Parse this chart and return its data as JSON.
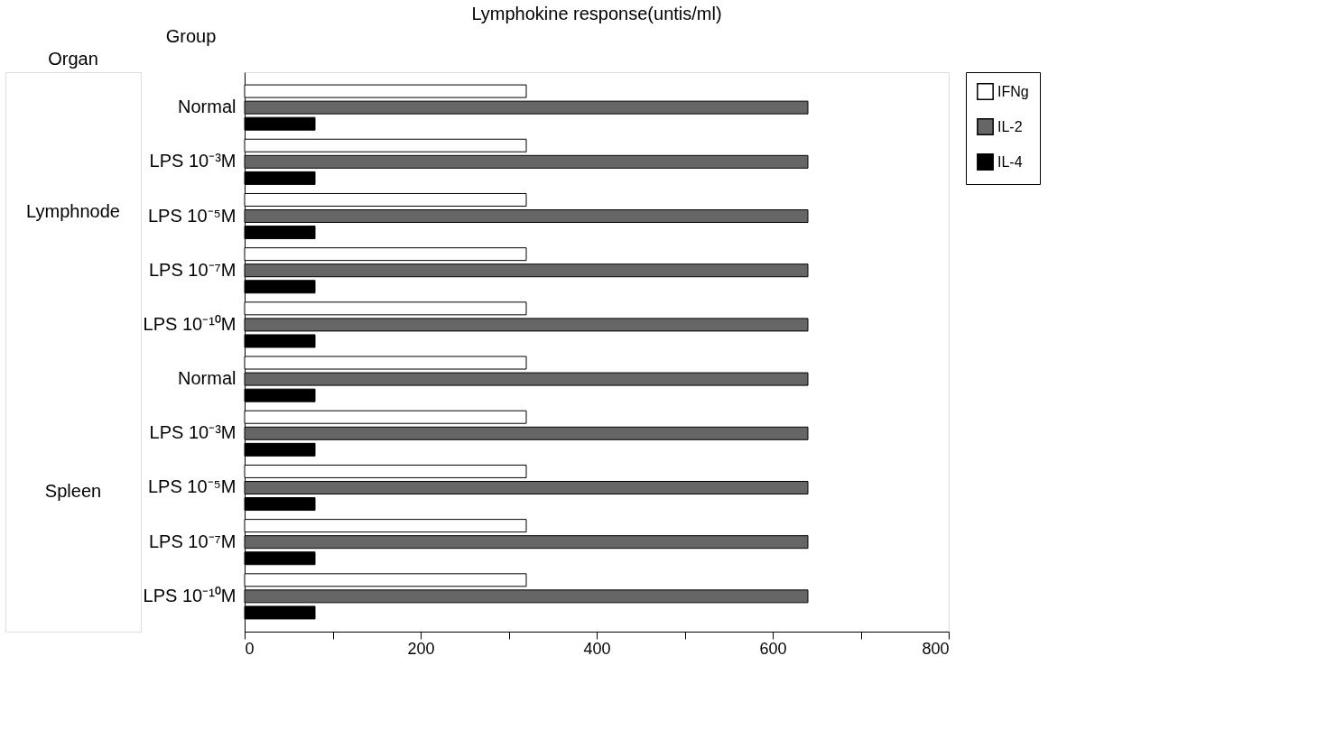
{
  "chart_data": {
    "type": "bar",
    "orientation": "horizontal",
    "title": "Lymphokine response(untis/ml)",
    "ylabel": "Group",
    "annotations": [
      "Organ",
      "Lymphnode",
      "Spleen"
    ],
    "categories": [
      "Normal",
      "LPS 10⁻³M",
      "LPS 10⁻⁵M",
      "LPS 10⁻⁷M",
      "LPS 10⁻¹⁰M",
      "Normal",
      "LPS 10⁻³M",
      "LPS 10⁻⁵M",
      "LPS 10⁻⁷M",
      "LPS 10⁻¹⁰M"
    ],
    "series": [
      {
        "name": "IFNg",
        "color": "#ffffff",
        "values": [
          320,
          320,
          320,
          320,
          320,
          320,
          320,
          320,
          320,
          320
        ]
      },
      {
        "name": "IL-2",
        "color": "#666666",
        "values": [
          640,
          640,
          640,
          640,
          640,
          640,
          640,
          640,
          640,
          640
        ]
      },
      {
        "name": "IL-4",
        "color": "#000000",
        "values": [
          80,
          80,
          80,
          80,
          80,
          80,
          80,
          80,
          80,
          80
        ]
      }
    ],
    "xlim": [
      0,
      800
    ],
    "xticks": [
      0,
      {
        "value": 100,
        "label": null
      },
      200,
      {
        "value": 300,
        "label": null
      },
      400,
      {
        "value": 500,
        "label": null
      },
      600,
      {
        "value": 700,
        "label": null
      },
      800
    ],
    "grid": false,
    "legend": "right"
  }
}
